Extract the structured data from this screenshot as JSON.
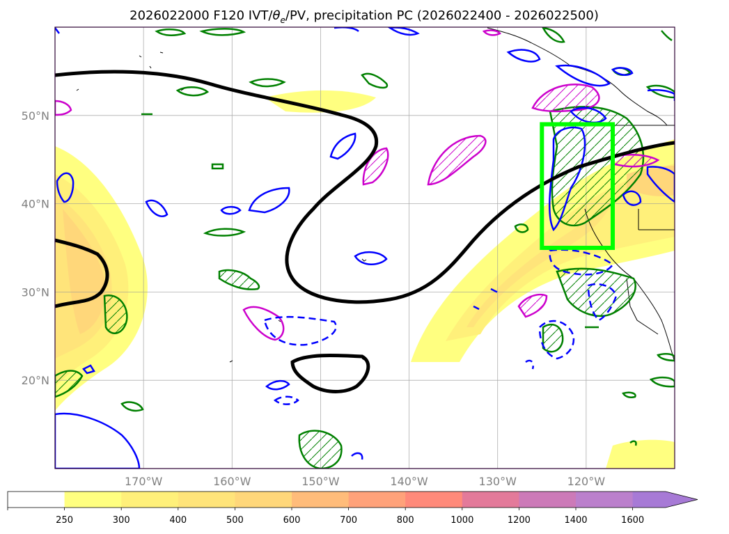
{
  "chart_data": {
    "type": "map",
    "title": "2026022000 F120 IVT/θe/PV, precipitation PC (2026022400 - 2026022500)",
    "title_parts": {
      "prefix": "2026022000 F120 IVT/",
      "theta": "θ",
      "sub": "e",
      "suffix": "/PV, precipitation PC (2026022400 - 2026022500)"
    },
    "lon_range": [
      -180,
      -110
    ],
    "lat_range": [
      10,
      60
    ],
    "lon_ticks": [
      -170,
      -160,
      -150,
      -140,
      -130,
      -120
    ],
    "lon_tick_labels": [
      "170°W",
      "160°W",
      "150°W",
      "140°W",
      "130°W",
      "120°W"
    ],
    "lat_ticks": [
      20,
      30,
      40,
      50
    ],
    "lat_tick_labels": [
      "20°N",
      "30°N",
      "40°N",
      "50°N"
    ],
    "grid": true,
    "highlight_box": {
      "lon": [
        -125,
        -117
      ],
      "lat": [
        35,
        49
      ],
      "color": "#00ff00"
    },
    "colorbar": {
      "levels": [
        250,
        300,
        400,
        500,
        600,
        700,
        800,
        1000,
        1200,
        1400,
        1600
      ],
      "labels": [
        "250",
        "300",
        "400",
        "500",
        "600",
        "700",
        "800",
        "1000",
        "1200",
        "1400",
        "1600"
      ],
      "colors": [
        "#ffffff",
        "#ffff80",
        "#fff07a",
        "#ffe47a",
        "#ffd77a",
        "#ffbc7a",
        "#ffa27a",
        "#ff8a7a",
        "#e37a9a",
        "#cc7ab8",
        "#bb80cc",
        "#a77ad6"
      ],
      "extend": "max"
    },
    "contour_colors": {
      "theta_e": "#000000",
      "pv_positive": "#0000ff",
      "pv_negative": "#0000ff",
      "precip_pc_high": "#008000",
      "precip_pc_low": "#cc00cc",
      "frame": "#2b0033"
    }
  }
}
